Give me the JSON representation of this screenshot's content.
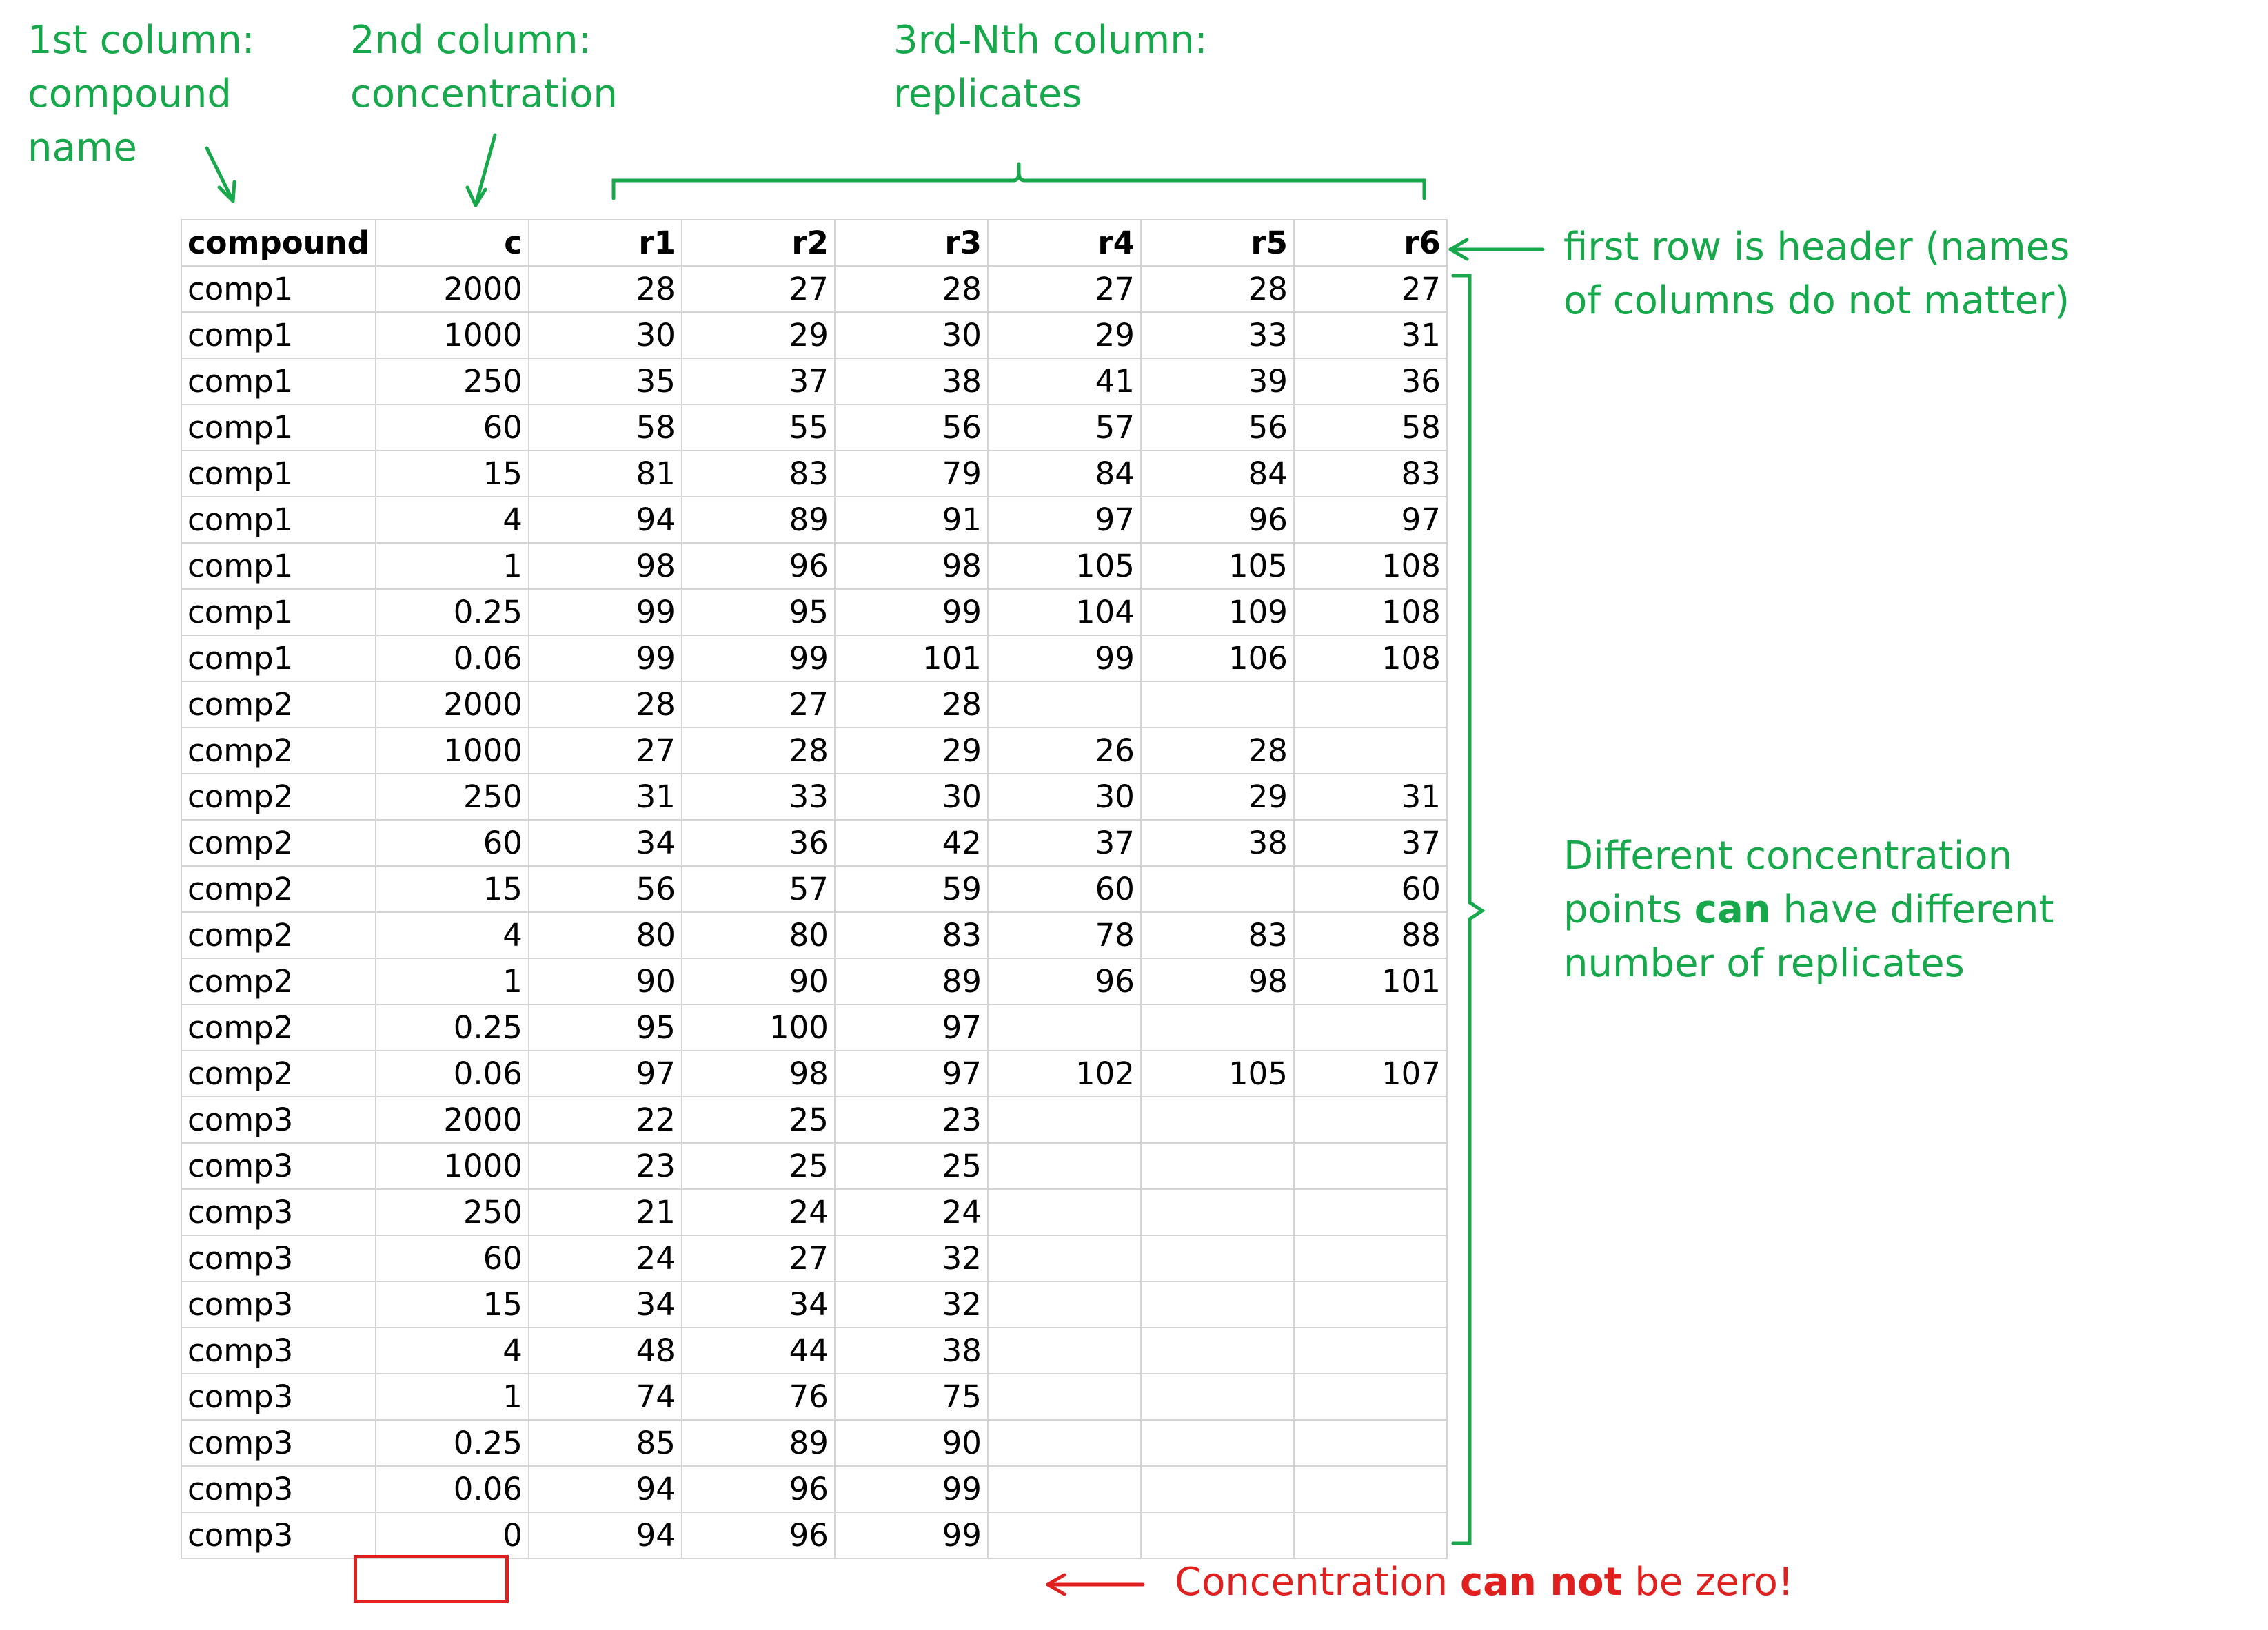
{
  "annotations": {
    "col1": [
      "1st column:",
      "compound",
      "name"
    ],
    "col2": [
      "2nd column:",
      "concentration"
    ],
    "col3": [
      "3rd-Nth column:",
      "replicates"
    ],
    "header_note": [
      "first row is header (names",
      "of columns do not matter)"
    ],
    "replicates_note": {
      "line1": "Different concentration",
      "line2_a": "points ",
      "line2_bold": "can",
      "line2_b": " have different",
      "line3": "number of replicates"
    },
    "zero_note": {
      "a": "Concentration ",
      "bold": "can not",
      "b": "  be zero!"
    }
  },
  "colors": {
    "green": "#16a84b",
    "red": "#e0201f",
    "grid": "#d4d4d4"
  },
  "table": {
    "headers": [
      "compound",
      "c",
      "r1",
      "r2",
      "r3",
      "r4",
      "r5",
      "r6"
    ],
    "rows": [
      [
        "comp1",
        "2000",
        "28",
        "27",
        "28",
        "27",
        "28",
        "27"
      ],
      [
        "comp1",
        "1000",
        "30",
        "29",
        "30",
        "29",
        "33",
        "31"
      ],
      [
        "comp1",
        "250",
        "35",
        "37",
        "38",
        "41",
        "39",
        "36"
      ],
      [
        "comp1",
        "60",
        "58",
        "55",
        "56",
        "57",
        "56",
        "58"
      ],
      [
        "comp1",
        "15",
        "81",
        "83",
        "79",
        "84",
        "84",
        "83"
      ],
      [
        "comp1",
        "4",
        "94",
        "89",
        "91",
        "97",
        "96",
        "97"
      ],
      [
        "comp1",
        "1",
        "98",
        "96",
        "98",
        "105",
        "105",
        "108"
      ],
      [
        "comp1",
        "0.25",
        "99",
        "95",
        "99",
        "104",
        "109",
        "108"
      ],
      [
        "comp1",
        "0.06",
        "99",
        "99",
        "101",
        "99",
        "106",
        "108"
      ],
      [
        "comp2",
        "2000",
        "28",
        "27",
        "28",
        "",
        "",
        ""
      ],
      [
        "comp2",
        "1000",
        "27",
        "28",
        "29",
        "26",
        "28",
        ""
      ],
      [
        "comp2",
        "250",
        "31",
        "33",
        "30",
        "30",
        "29",
        "31"
      ],
      [
        "comp2",
        "60",
        "34",
        "36",
        "42",
        "37",
        "38",
        "37"
      ],
      [
        "comp2",
        "15",
        "56",
        "57",
        "59",
        "60",
        "",
        "60"
      ],
      [
        "comp2",
        "4",
        "80",
        "80",
        "83",
        "78",
        "83",
        "88"
      ],
      [
        "comp2",
        "1",
        "90",
        "90",
        "89",
        "96",
        "98",
        "101"
      ],
      [
        "comp2",
        "0.25",
        "95",
        "100",
        "97",
        "",
        "",
        ""
      ],
      [
        "comp2",
        "0.06",
        "97",
        "98",
        "97",
        "102",
        "105",
        "107"
      ],
      [
        "comp3",
        "2000",
        "22",
        "25",
        "23",
        "",
        "",
        ""
      ],
      [
        "comp3",
        "1000",
        "23",
        "25",
        "25",
        "",
        "",
        ""
      ],
      [
        "comp3",
        "250",
        "21",
        "24",
        "24",
        "",
        "",
        ""
      ],
      [
        "comp3",
        "60",
        "24",
        "27",
        "32",
        "",
        "",
        ""
      ],
      [
        "comp3",
        "15",
        "34",
        "34",
        "32",
        "",
        "",
        ""
      ],
      [
        "comp3",
        "4",
        "48",
        "44",
        "38",
        "",
        "",
        ""
      ],
      [
        "comp3",
        "1",
        "74",
        "76",
        "75",
        "",
        "",
        ""
      ],
      [
        "comp3",
        "0.25",
        "85",
        "89",
        "90",
        "",
        "",
        ""
      ],
      [
        "comp3",
        "0.06",
        "94",
        "96",
        "99",
        "",
        "",
        ""
      ],
      [
        "comp3",
        "0",
        "94",
        "96",
        "99",
        "",
        "",
        ""
      ]
    ]
  }
}
